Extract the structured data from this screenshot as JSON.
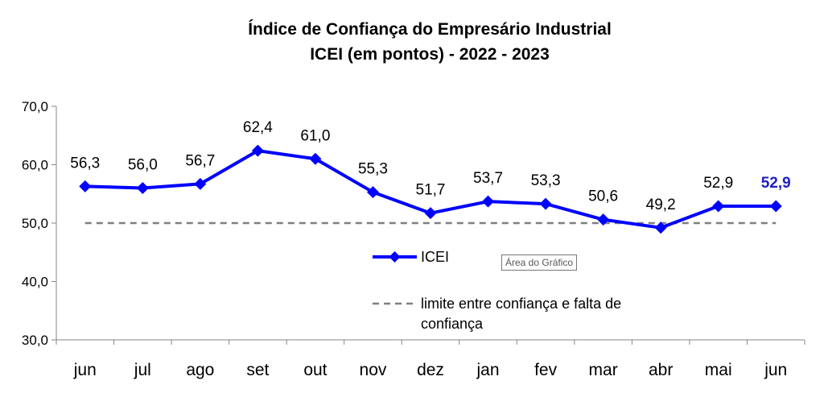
{
  "chart_data": {
    "type": "line",
    "title": "Índice de Confiança do Empresário Industrial",
    "subtitle": "ICEI (em pontos) - 2022 - 2023",
    "categories": [
      "jun",
      "jul",
      "ago",
      "set",
      "out",
      "nov",
      "dez",
      "jan",
      "fev",
      "mar",
      "abr",
      "mai",
      "jun"
    ],
    "series": [
      {
        "name": "ICEI",
        "values": [
          56.3,
          56.0,
          56.7,
          62.4,
          61.0,
          55.3,
          51.7,
          53.7,
          53.3,
          50.6,
          49.2,
          52.9,
          52.9
        ],
        "labels": [
          "56,3",
          "56,0",
          "56,7",
          "62,4",
          "61,0",
          "55,3",
          "51,7",
          "53,7",
          "53,3",
          "50,6",
          "49,2",
          "52,9",
          "52,9"
        ],
        "color": "#0000ff",
        "marker": "diamond"
      },
      {
        "name": "limite entre confiança e falta de confiança",
        "name_lines": [
          "limite entre confiança e falta de",
          "confiança"
        ],
        "constant": 50.0,
        "color": "#7f7f7f",
        "style": "dashed"
      }
    ],
    "ylim": [
      30,
      70
    ],
    "yticks": [
      30,
      40,
      50,
      60,
      70
    ],
    "ytick_labels": [
      "30,0",
      "40,0",
      "50,0",
      "60,0",
      "70,0"
    ],
    "grid": false,
    "legend": "center",
    "highlight_last_label_color": "#1f1fbf"
  },
  "tooltip": "Área do Gráfico"
}
